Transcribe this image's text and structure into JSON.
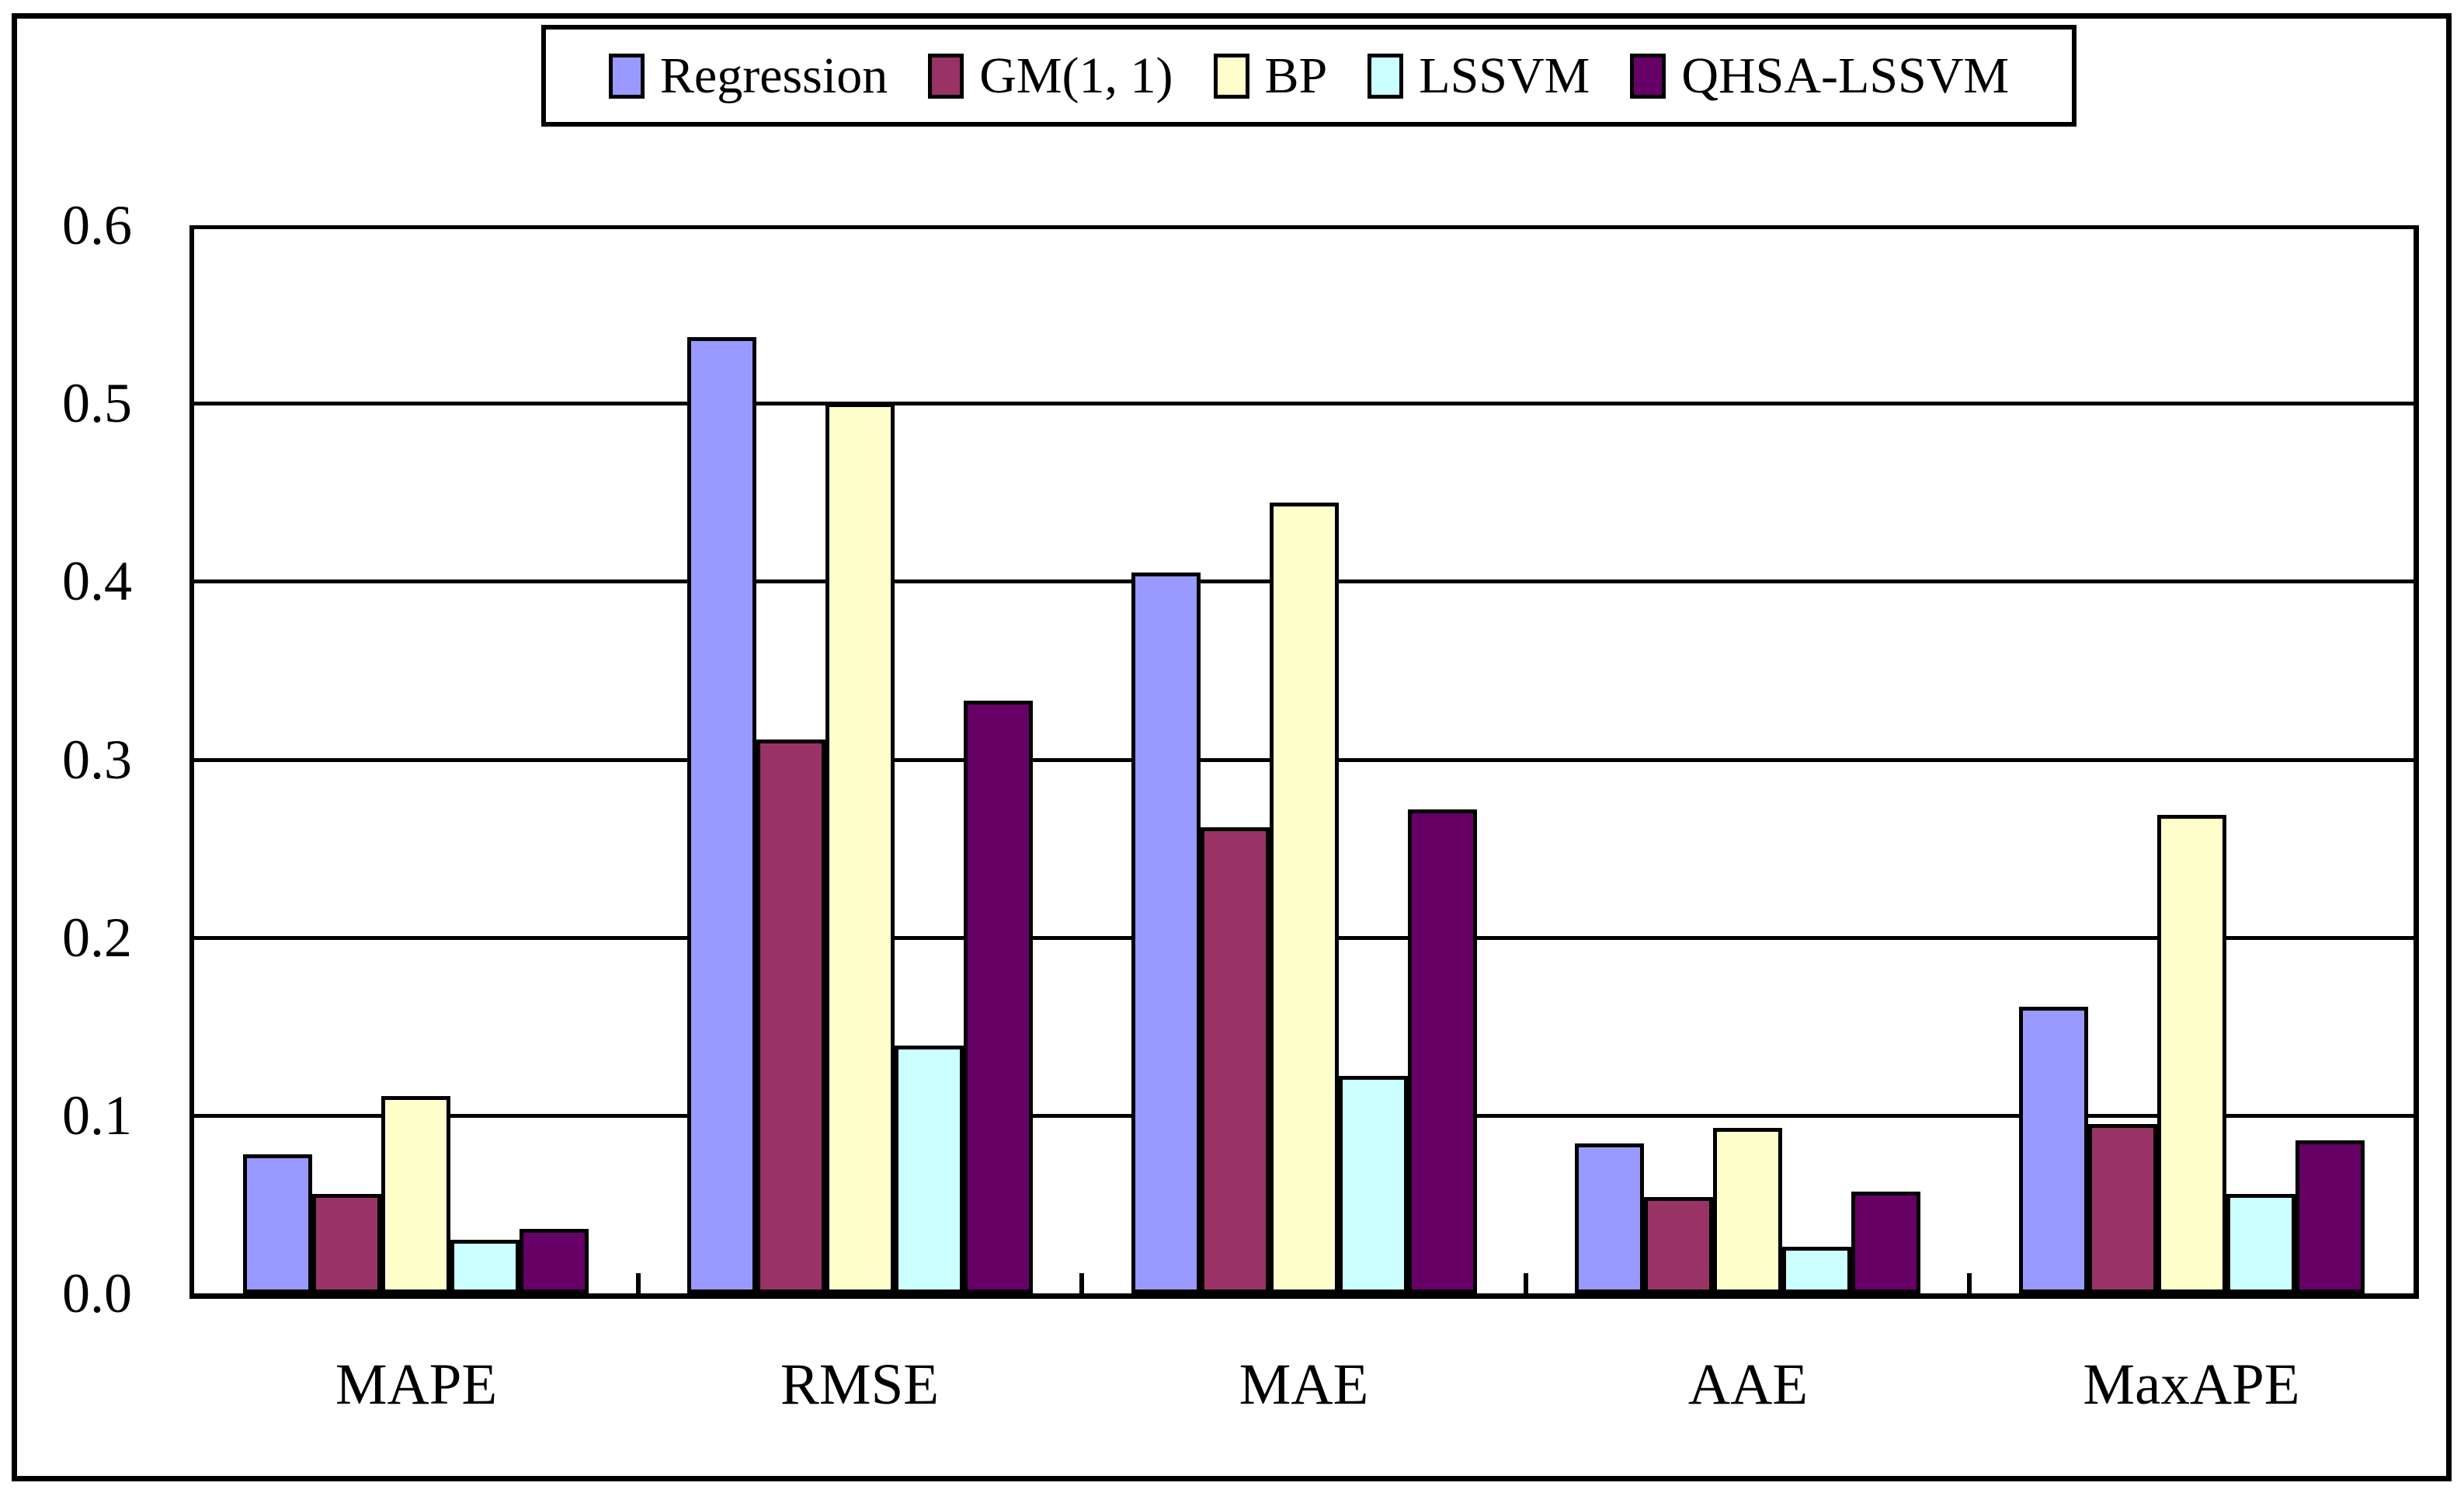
{
  "figure": {
    "background": "#FFFFFF",
    "border_color": "#000000"
  },
  "chart_data": {
    "type": "bar",
    "title": "",
    "xlabel": "",
    "ylabel": "",
    "categories": [
      "MAPE",
      "RMSE",
      "MAE",
      "AAE",
      "MaxAPE"
    ],
    "series": [
      {
        "name": "Regression",
        "color": "#9999FF",
        "values": [
          0.078,
          0.537,
          0.405,
          0.084,
          0.161
        ]
      },
      {
        "name": "GM(1, 1)",
        "color": "#993366",
        "values": [
          0.056,
          0.311,
          0.262,
          0.054,
          0.095
        ]
      },
      {
        "name": "BP",
        "color": "#FFFFCC",
        "values": [
          0.111,
          0.5,
          0.444,
          0.093,
          0.269
        ]
      },
      {
        "name": "LSSVM",
        "color": "#CCFFFF",
        "values": [
          0.03,
          0.139,
          0.122,
          0.026,
          0.056
        ]
      },
      {
        "name": "QHSA-LSSVM",
        "color": "#660066",
        "values": [
          0.036,
          0.333,
          0.272,
          0.057,
          0.086
        ]
      }
    ],
    "ylim": [
      0.0,
      0.6
    ],
    "yticks": [
      "0.0",
      "0.1",
      "0.2",
      "0.3",
      "0.4",
      "0.5",
      "0.6"
    ],
    "grid": true,
    "gridline_color": "#000000",
    "legend_position": "top"
  }
}
